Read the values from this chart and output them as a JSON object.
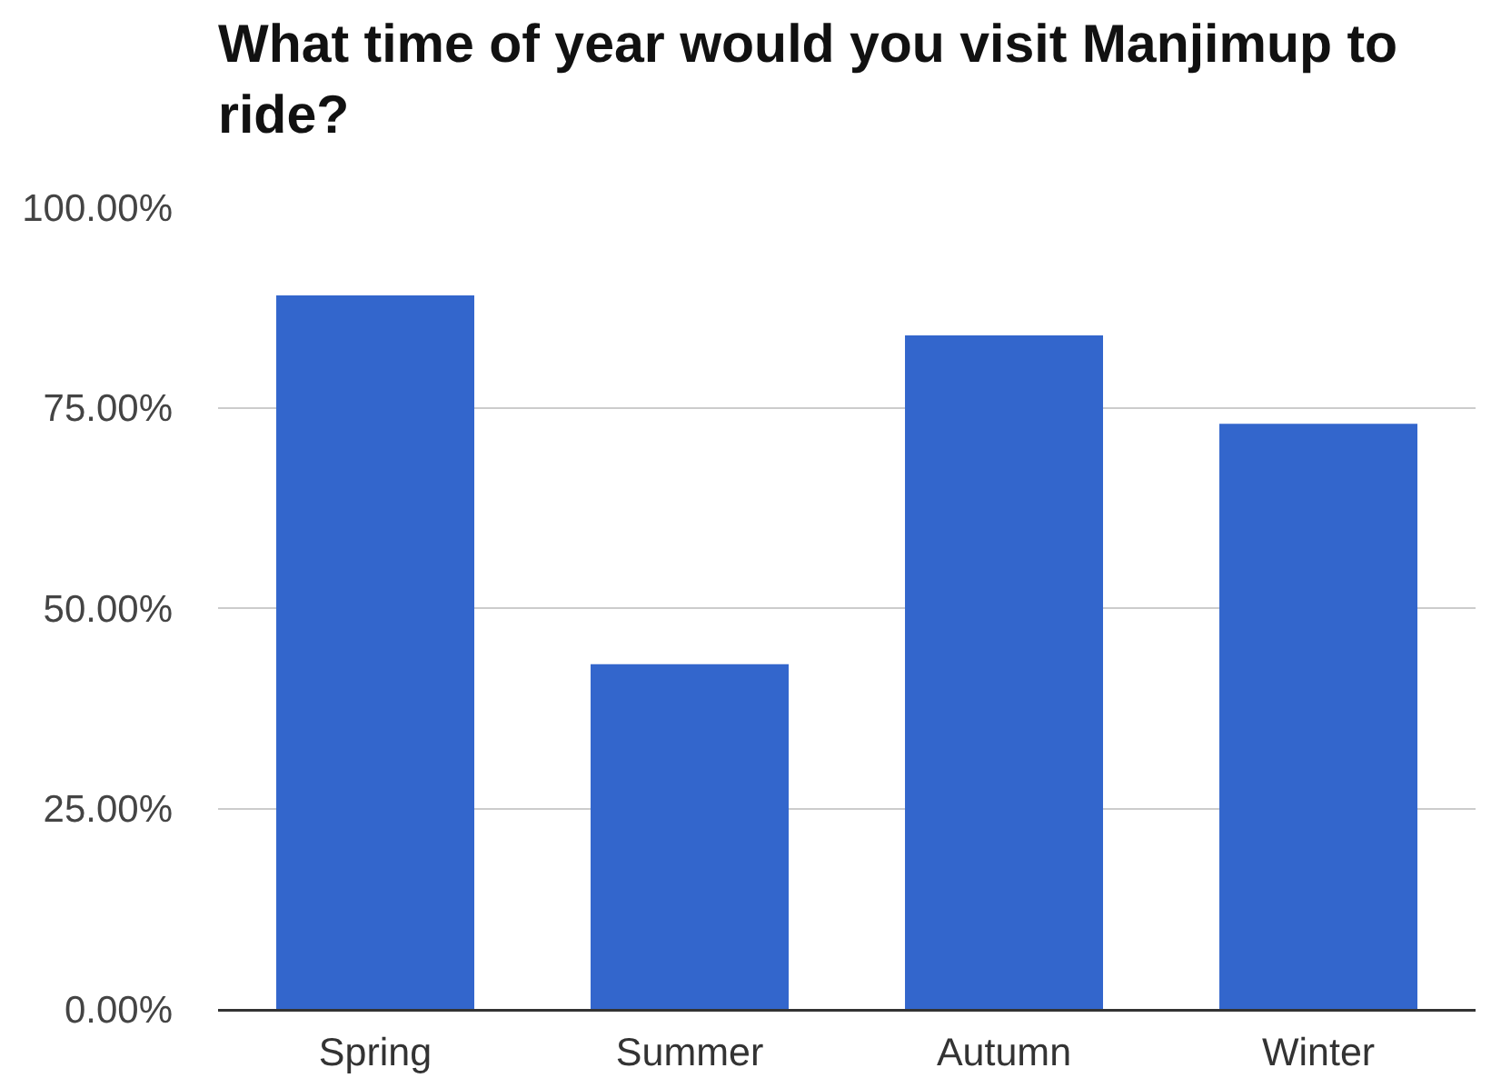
{
  "chart_data": {
    "type": "bar",
    "title": "What time of year would you visit Manjimup to ride?",
    "categories": [
      "Spring",
      "Summer",
      "Autumn",
      "Winter"
    ],
    "values": [
      89,
      43,
      84,
      73
    ],
    "color": "#3366cc",
    "ylim": [
      0,
      100
    ],
    "yticks": [
      {
        "value": 0,
        "label": "0.00%"
      },
      {
        "value": 25,
        "label": "25.00%"
      },
      {
        "value": 50,
        "label": "50.00%"
      },
      {
        "value": 75,
        "label": "75.00%"
      },
      {
        "value": 100,
        "label": "100.00%"
      }
    ],
    "grid": "y"
  }
}
